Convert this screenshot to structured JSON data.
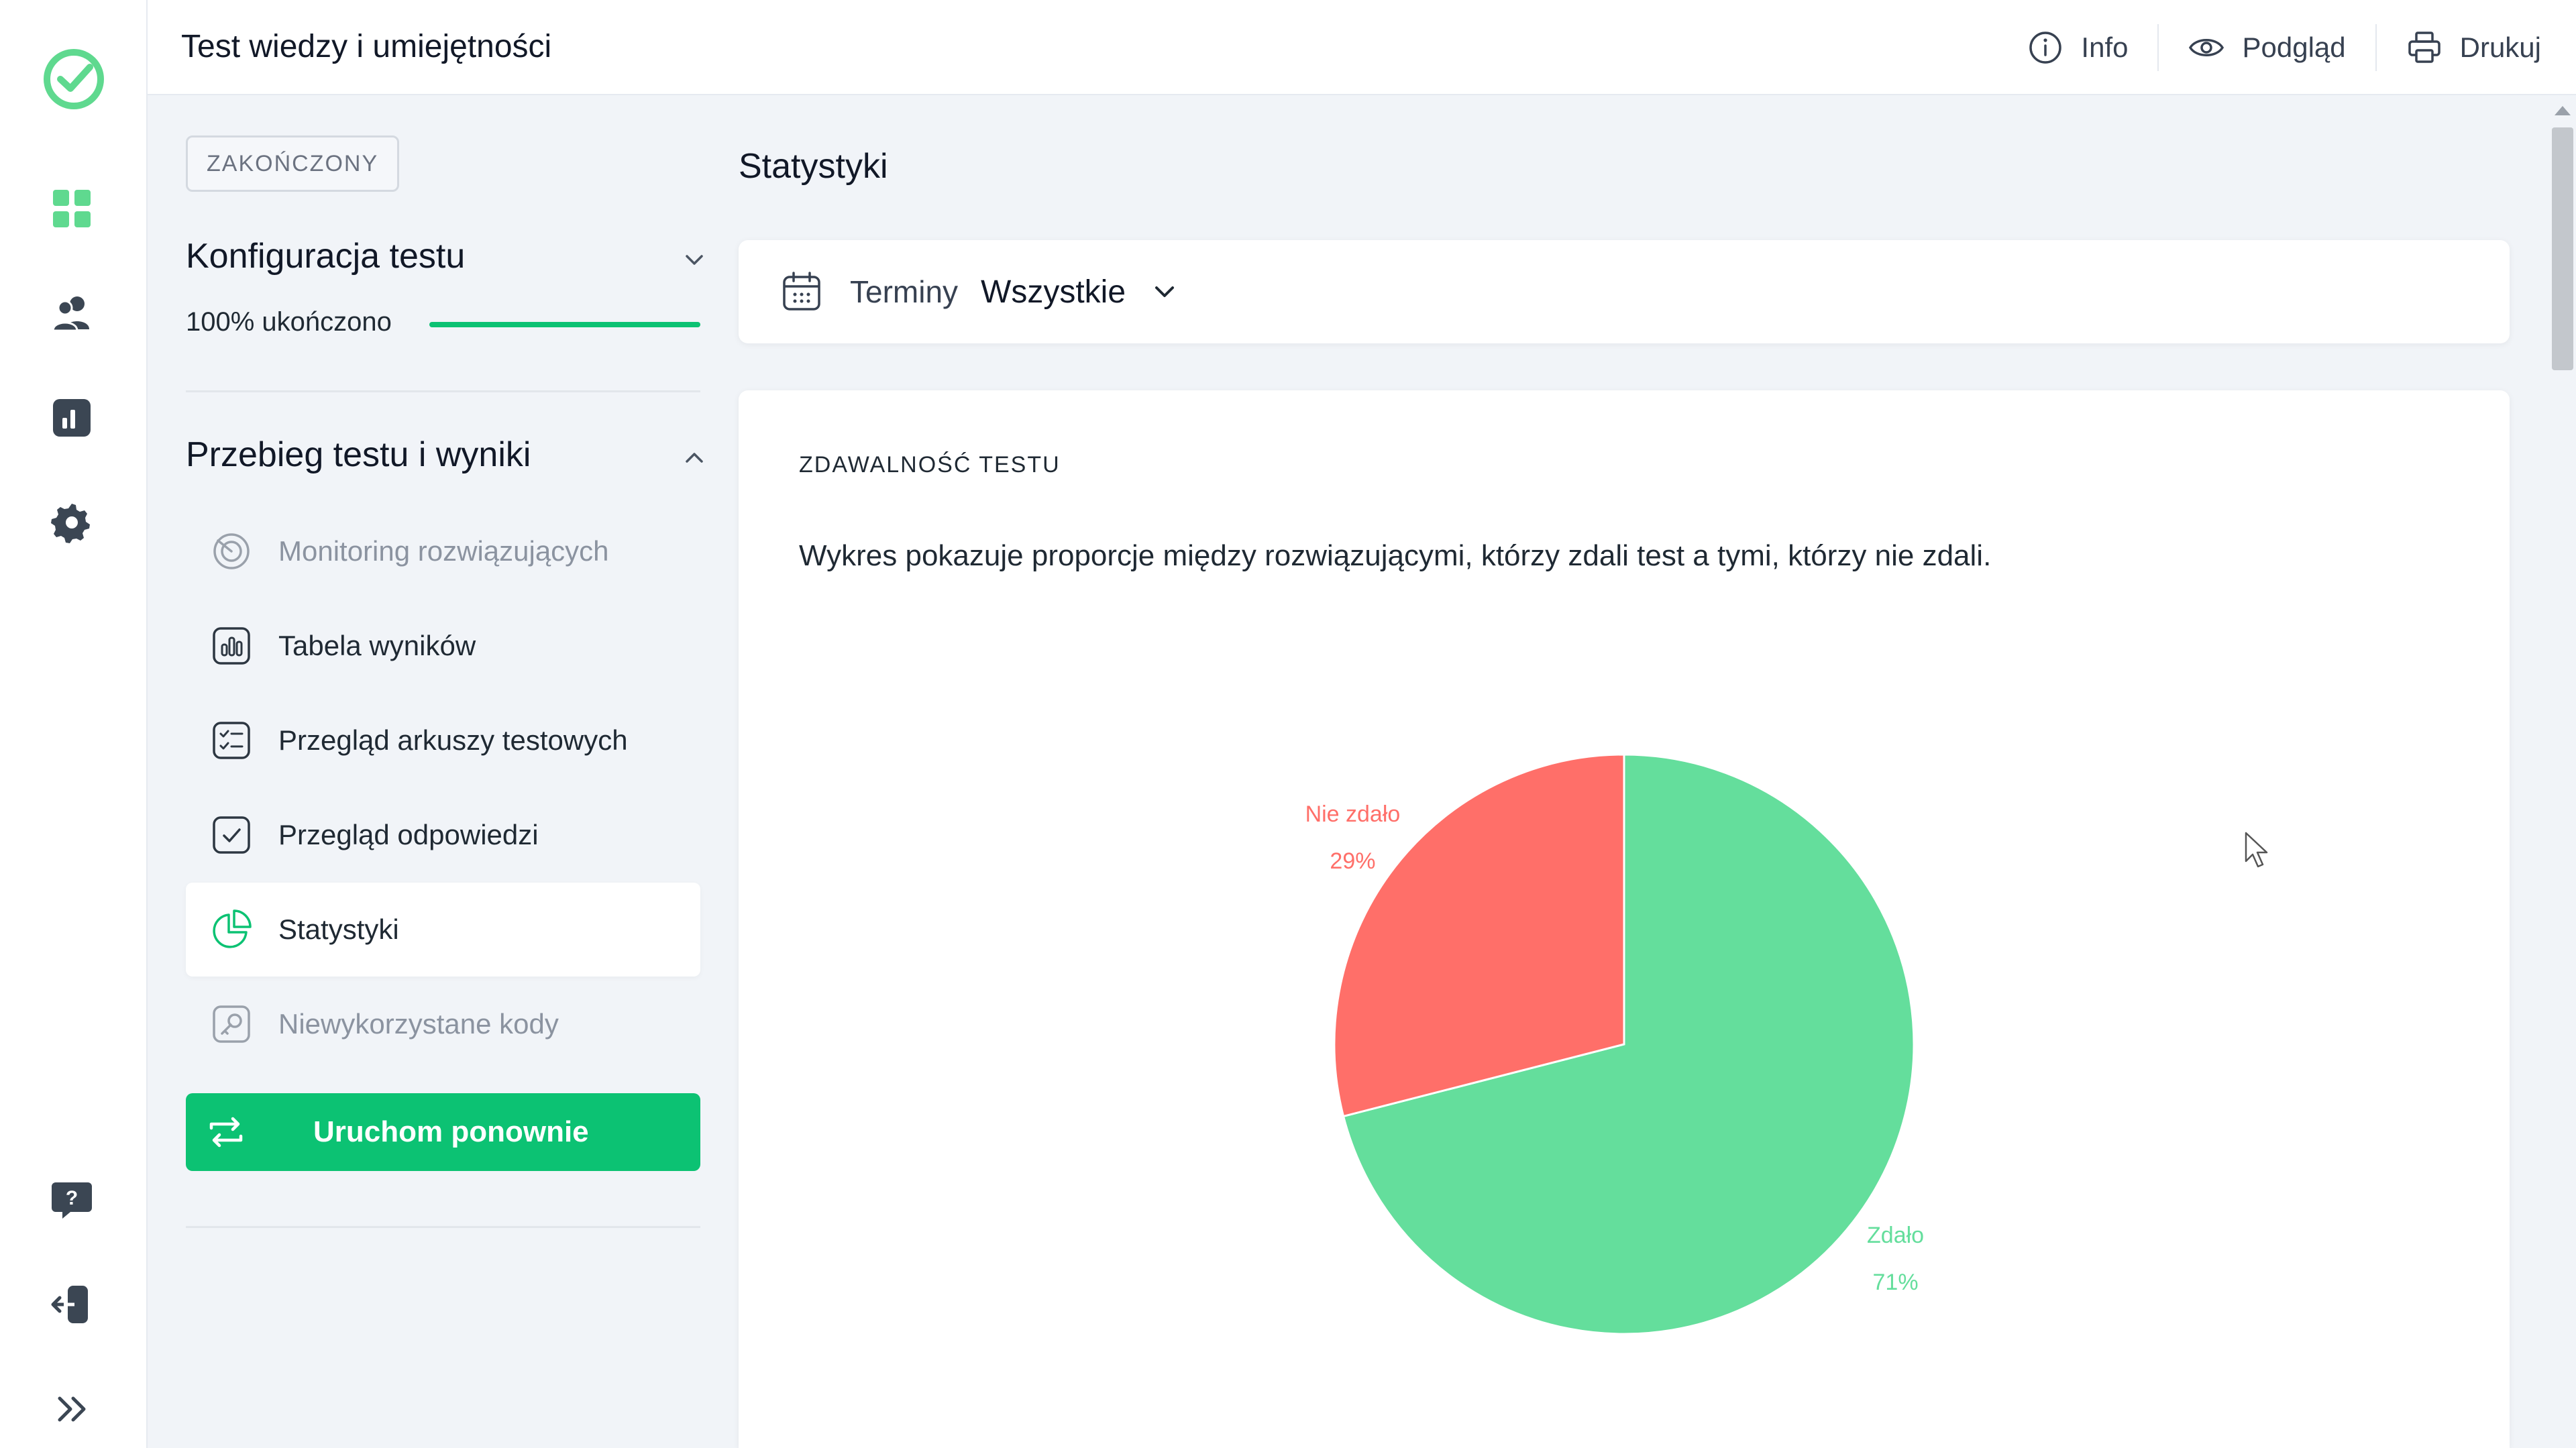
{
  "app": {
    "title": "Test wiedzy i umiejętności"
  },
  "topbar": {
    "actions": [
      {
        "label": "Info",
        "icon": "info-icon"
      },
      {
        "label": "Podgląd",
        "icon": "eye-icon"
      },
      {
        "label": "Drukuj",
        "icon": "printer-icon"
      }
    ]
  },
  "rail": {
    "icons": [
      "logo-check-icon",
      "dashboard-icon",
      "users-icon",
      "reports-icon",
      "settings-icon",
      "help-icon",
      "logout-icon",
      "expand-icon"
    ]
  },
  "sidebar": {
    "status_badge": "ZAKOŃCZONY",
    "config": {
      "title": "Konfiguracja testu",
      "progress_label": "100% ukończono",
      "progress": 1.0
    },
    "results": {
      "title": "Przebieg testu i wyniki",
      "items": [
        {
          "label": "Monitoring rozwiązujących",
          "icon": "monitoring-icon",
          "state": "disabled"
        },
        {
          "label": "Tabela wyników",
          "icon": "results-table-icon",
          "state": "normal"
        },
        {
          "label": "Przegląd arkuszy testowych",
          "icon": "checklist-icon",
          "state": "normal"
        },
        {
          "label": "Przegląd odpowiedzi",
          "icon": "check-square-icon",
          "state": "normal"
        },
        {
          "label": "Statystyki",
          "icon": "pie-chart-icon",
          "state": "active"
        },
        {
          "label": "Niewykorzystane kody",
          "icon": "key-icon",
          "state": "disabled"
        }
      ]
    },
    "restart_button": "Uruchom ponownie"
  },
  "main": {
    "title": "Statystyki",
    "filter": {
      "label": "Terminy",
      "value": "Wszystkie"
    },
    "card": {
      "heading": "ZDAWALNOŚĆ TESTU",
      "description": "Wykres pokazuje proporcje między rozwiązującymi, którzy zdali test a tymi, którzy nie zdali."
    }
  },
  "colors": {
    "accent": "#0cc273",
    "pass": "#64de9c",
    "fail": "#ff6f69"
  },
  "chart_data": {
    "type": "pie",
    "categories": [
      "Zdało",
      "Nie zdało"
    ],
    "values": [
      71,
      29
    ],
    "value_labels": [
      "71%",
      "29%"
    ],
    "colors": [
      "#64de9c",
      "#ff6f69"
    ]
  }
}
